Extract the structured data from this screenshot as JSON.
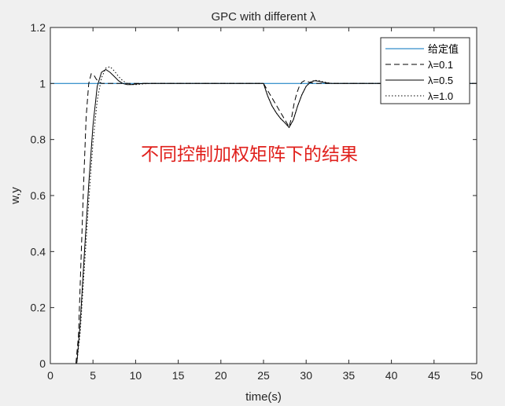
{
  "chart_data": {
    "type": "line",
    "title": "GPC with different λ",
    "xlabel": "time(s)",
    "ylabel": "w,y",
    "xlim": [
      0,
      50
    ],
    "ylim": [
      0,
      1.2
    ],
    "xticks": [
      0,
      5,
      10,
      15,
      20,
      25,
      30,
      35,
      40,
      45,
      50
    ],
    "yticks": [
      0,
      0.2,
      0.4,
      0.6,
      0.8,
      1,
      1.2
    ],
    "xtick_labels": [
      "0",
      "5",
      "10",
      "15",
      "20",
      "25",
      "30",
      "35",
      "40",
      "45",
      "50"
    ],
    "ytick_labels": [
      "0",
      "0.2",
      "0.4",
      "0.6",
      "0.8",
      "1",
      "1.2"
    ],
    "grid": false,
    "legend_position": "top-right",
    "annotation": "不同控制加权矩阵下的结果",
    "series": [
      {
        "name": "给定值",
        "style": "solid",
        "color": "#0072bd",
        "x": [
          0,
          50
        ],
        "y": [
          1,
          1
        ]
      },
      {
        "name": "λ=0.1",
        "style": "dashed",
        "color": "#000000",
        "x": [
          0,
          3,
          3.3,
          3.6,
          3.9,
          4.2,
          4.5,
          4.8,
          5.1,
          5.4,
          5.7,
          6.0,
          6.5,
          7.0,
          7.5,
          8.0,
          9.0,
          10.0,
          12.0,
          15.0,
          20.0,
          25.0,
          28.0,
          28.3,
          28.6,
          28.9,
          29.2,
          29.5,
          29.8,
          30.1,
          30.4,
          30.7,
          31.0,
          31.5,
          32.0,
          33.0,
          50.0
        ],
        "y": [
          0,
          0,
          0.1,
          0.37,
          0.64,
          0.88,
          1.0,
          1.035,
          1.03,
          1.015,
          1.005,
          1.0,
          1.0,
          1.0,
          1.0,
          1.0,
          1.0,
          1.0,
          1.0,
          1.0,
          1.0,
          1.0,
          0.845,
          0.88,
          0.93,
          0.965,
          0.99,
          1.005,
          1.01,
          1.008,
          1.004,
          1.002,
          1.0,
          1.0,
          1.0,
          1.0,
          1.0
        ]
      },
      {
        "name": "λ=0.5",
        "style": "solid",
        "color": "#000000",
        "x": [
          0,
          3.1,
          3.5,
          4.0,
          4.5,
          5.0,
          5.5,
          6.0,
          6.5,
          7.0,
          7.5,
          8.0,
          8.5,
          9.0,
          9.5,
          10.0,
          11.0,
          12.0,
          15.0,
          20.0,
          25.0,
          25.5,
          26.0,
          26.5,
          27.0,
          27.5,
          28.0,
          28.5,
          29.0,
          29.5,
          30.0,
          30.5,
          31.0,
          31.5,
          32.0,
          32.5,
          33.0,
          34.0,
          50.0
        ],
        "y": [
          0,
          0,
          0.14,
          0.4,
          0.64,
          0.85,
          0.99,
          1.04,
          1.05,
          1.04,
          1.025,
          1.01,
          1.0,
          0.996,
          0.996,
          0.998,
          1.0,
          1.0,
          1.0,
          1.0,
          1.0,
          0.955,
          0.92,
          0.895,
          0.875,
          0.86,
          0.843,
          0.87,
          0.92,
          0.96,
          0.99,
          1.005,
          1.01,
          1.008,
          1.004,
          1.002,
          1.0,
          1.0,
          1.0
        ]
      },
      {
        "name": "λ=1.0",
        "style": "dotted",
        "color": "#000000",
        "x": [
          0,
          3.1,
          3.5,
          4.0,
          4.5,
          5.0,
          5.5,
          6.0,
          6.5,
          7.0,
          7.5,
          8.0,
          8.5,
          9.0,
          9.5,
          10.0,
          11.0,
          12.0,
          15.0,
          20.0,
          25.0,
          25.5,
          26.0,
          26.5,
          27.0,
          27.5,
          28.0,
          28.5,
          29.0,
          29.5,
          30.0,
          30.5,
          31.0,
          31.5,
          32.0,
          32.5,
          33.0,
          34.0,
          50.0
        ],
        "y": [
          0,
          0,
          0.11,
          0.35,
          0.58,
          0.79,
          0.94,
          1.02,
          1.055,
          1.06,
          1.045,
          1.025,
          1.01,
          1.0,
          0.996,
          0.996,
          0.999,
          1.0,
          1.0,
          1.0,
          1.0,
          0.955,
          0.92,
          0.895,
          0.875,
          0.86,
          0.843,
          0.87,
          0.92,
          0.96,
          0.99,
          1.005,
          1.012,
          1.01,
          1.006,
          1.003,
          1.0,
          1.0,
          1.0
        ]
      }
    ]
  }
}
